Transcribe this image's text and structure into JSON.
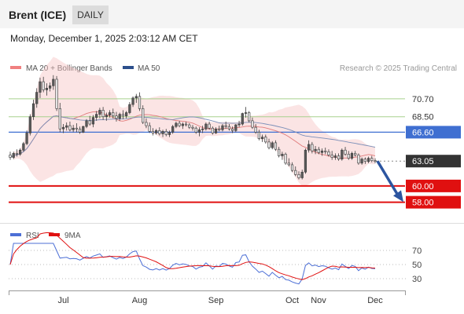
{
  "instrument": "Brent (ICE)",
  "timeframe": "DAILY",
  "timestamp": "Monday, December 1, 2025 2:03:12 AM CET",
  "credit": "Research © 2025 Trading Central",
  "colors": {
    "candle": "#3a3a3a",
    "bollinger_band": "#f7c4c4",
    "ma20": "#e07b7b",
    "ma50": "#7b8fb8",
    "pivot": "#3f6fd1",
    "support": "#e01010",
    "resistance": "#a8d08d",
    "last_price": "#333333",
    "rsi": "#4c6fd6",
    "rsi_ma": "#e01010",
    "arrow": "#2c55a0"
  },
  "chart_data": [
    {
      "type": "candlestick",
      "title": "Brent (ICE)",
      "legend": [
        {
          "label": "MA 20 + Bollinger Bands",
          "color": "#f08080"
        },
        {
          "label": "MA 50",
          "color": "#2c4f8c"
        }
      ],
      "legend_placement": "top-left",
      "xaxis_ticks": [
        "Jul",
        "Aug",
        "Sep",
        "Oct",
        "Nov",
        "Dec"
      ],
      "ylim": [
        57,
        73
      ],
      "ohlc": [
        [
          63.8,
          64.2,
          63.2,
          63.5
        ],
        [
          63.5,
          64.2,
          63.3,
          64.0
        ],
        [
          64.0,
          64.5,
          63.6,
          63.9
        ],
        [
          63.9,
          64.6,
          63.7,
          64.4
        ],
        [
          64.4,
          65.4,
          64.2,
          65.2
        ],
        [
          65.2,
          66.8,
          65.0,
          66.5
        ],
        [
          66.5,
          68.8,
          66.2,
          68.5
        ],
        [
          68.5,
          70.6,
          68.1,
          70.1
        ],
        [
          70.1,
          72.0,
          69.6,
          71.5
        ],
        [
          71.5,
          73.3,
          70.8,
          72.8
        ],
        [
          72.8,
          73.4,
          71.5,
          71.8
        ],
        [
          71.8,
          72.6,
          71.1,
          72.0
        ],
        [
          72.0,
          72.7,
          71.6,
          72.3
        ],
        [
          72.3,
          73.6,
          71.8,
          73.1
        ],
        [
          73.1,
          73.5,
          69.2,
          69.5
        ],
        [
          69.5,
          70.2,
          66.6,
          67.0
        ],
        [
          67.0,
          67.6,
          66.5,
          67.2
        ],
        [
          67.2,
          67.8,
          66.8,
          67.4
        ],
        [
          67.4,
          67.9,
          66.7,
          66.9
        ],
        [
          66.9,
          67.5,
          66.6,
          67.1
        ],
        [
          67.1,
          67.7,
          66.6,
          67.0
        ],
        [
          67.0,
          67.3,
          66.4,
          66.6
        ],
        [
          66.6,
          67.4,
          66.5,
          67.3
        ],
        [
          67.3,
          68.2,
          67.1,
          68.0
        ],
        [
          68.0,
          68.6,
          67.4,
          67.6
        ],
        [
          67.6,
          68.7,
          67.2,
          68.4
        ],
        [
          68.4,
          69.2,
          68.0,
          68.8
        ],
        [
          68.8,
          69.6,
          68.3,
          69.3
        ],
        [
          69.3,
          69.7,
          68.1,
          68.5
        ],
        [
          68.5,
          69.0,
          68.0,
          68.7
        ],
        [
          68.7,
          69.3,
          68.4,
          69.0
        ],
        [
          69.0,
          69.5,
          68.3,
          68.6
        ],
        [
          68.6,
          69.1,
          67.9,
          68.3
        ],
        [
          68.3,
          69.0,
          68.0,
          68.8
        ],
        [
          68.8,
          69.3,
          68.2,
          68.6
        ],
        [
          68.6,
          69.2,
          68.3,
          69.0
        ],
        [
          69.0,
          70.3,
          68.8,
          70.0
        ],
        [
          70.0,
          71.0,
          69.7,
          70.8
        ],
        [
          70.8,
          71.3,
          70.2,
          71.0
        ],
        [
          71.0,
          71.5,
          69.2,
          69.5
        ],
        [
          69.5,
          69.9,
          67.6,
          67.8
        ],
        [
          67.8,
          68.3,
          67.1,
          67.4
        ],
        [
          67.4,
          67.8,
          66.5,
          66.7
        ],
        [
          66.7,
          67.1,
          66.2,
          66.5
        ],
        [
          66.5,
          67.0,
          66.3,
          66.8
        ],
        [
          66.8,
          67.2,
          66.2,
          66.4
        ],
        [
          66.4,
          66.9,
          66.0,
          66.7
        ],
        [
          66.7,
          67.0,
          66.1,
          66.3
        ],
        [
          66.3,
          66.8,
          66.0,
          66.6
        ],
        [
          66.6,
          67.5,
          66.4,
          67.3
        ],
        [
          67.3,
          67.9,
          67.1,
          67.7
        ],
        [
          67.7,
          68.0,
          67.2,
          67.4
        ],
        [
          67.4,
          67.8,
          67.0,
          67.6
        ],
        [
          67.6,
          67.9,
          67.3,
          67.5
        ],
        [
          67.5,
          67.7,
          67.0,
          67.2
        ],
        [
          67.2,
          67.5,
          66.8,
          67.1
        ],
        [
          67.1,
          67.3,
          66.4,
          66.6
        ],
        [
          66.6,
          67.2,
          66.1,
          66.9
        ],
        [
          66.9,
          67.4,
          66.5,
          67.0
        ],
        [
          67.0,
          67.8,
          66.8,
          67.6
        ],
        [
          67.6,
          67.9,
          66.9,
          67.1
        ],
        [
          67.1,
          67.3,
          66.3,
          66.5
        ],
        [
          66.5,
          67.2,
          66.4,
          67.0
        ],
        [
          67.0,
          67.4,
          66.7,
          66.9
        ],
        [
          66.9,
          67.6,
          66.7,
          67.4
        ],
        [
          67.4,
          67.9,
          67.0,
          67.3
        ],
        [
          67.3,
          67.6,
          66.8,
          67.0
        ],
        [
          67.0,
          67.3,
          66.5,
          66.8
        ],
        [
          66.8,
          67.6,
          66.6,
          67.5
        ],
        [
          67.5,
          68.0,
          67.2,
          67.6
        ],
        [
          67.6,
          69.0,
          67.4,
          68.9
        ],
        [
          68.9,
          69.7,
          68.4,
          69.0
        ],
        [
          69.0,
          69.2,
          67.8,
          68.0
        ],
        [
          68.0,
          68.4,
          67.0,
          67.2
        ],
        [
          67.2,
          67.6,
          66.4,
          66.6
        ],
        [
          66.6,
          66.9,
          65.6,
          65.8
        ],
        [
          65.8,
          66.3,
          65.4,
          66.0
        ],
        [
          66.0,
          66.3,
          65.2,
          65.4
        ],
        [
          65.4,
          65.8,
          64.5,
          64.7
        ],
        [
          64.7,
          65.5,
          64.5,
          65.3
        ],
        [
          65.3,
          65.6,
          64.3,
          64.5
        ],
        [
          64.5,
          64.8,
          63.5,
          63.7
        ],
        [
          63.7,
          64.2,
          63.2,
          63.9
        ],
        [
          63.9,
          64.1,
          62.6,
          62.8
        ],
        [
          62.8,
          63.4,
          62.4,
          62.6
        ],
        [
          62.6,
          62.9,
          61.7,
          61.9
        ],
        [
          61.9,
          62.4,
          61.2,
          61.4
        ],
        [
          61.4,
          61.8,
          60.8,
          61.0
        ],
        [
          61.0,
          62.0,
          60.8,
          61.7
        ],
        [
          61.7,
          64.6,
          61.5,
          64.4
        ],
        [
          64.4,
          65.6,
          64.1,
          65.1
        ],
        [
          65.1,
          65.4,
          64.0,
          64.3
        ],
        [
          64.3,
          64.9,
          63.9,
          64.5
        ],
        [
          64.5,
          64.8,
          63.9,
          64.1
        ],
        [
          64.1,
          64.6,
          63.7,
          64.3
        ],
        [
          64.3,
          64.7,
          63.9,
          64.2
        ],
        [
          64.2,
          64.5,
          63.6,
          63.8
        ],
        [
          63.8,
          64.3,
          63.2,
          63.5
        ],
        [
          63.5,
          64.0,
          63.2,
          63.7
        ],
        [
          63.7,
          64.0,
          63.1,
          63.3
        ],
        [
          63.3,
          64.6,
          63.1,
          64.4
        ],
        [
          64.4,
          64.8,
          63.7,
          63.9
        ],
        [
          63.9,
          64.3,
          63.2,
          63.4
        ],
        [
          63.4,
          64.2,
          63.2,
          64.0
        ],
        [
          64.0,
          64.3,
          63.6,
          63.8
        ],
        [
          63.8,
          64.0,
          62.6,
          62.8
        ],
        [
          62.8,
          63.5,
          62.6,
          63.3
        ],
        [
          63.3,
          63.5,
          62.7,
          63.0
        ],
        [
          63.0,
          63.6,
          62.8,
          63.4
        ],
        [
          63.4,
          63.7,
          62.9,
          63.1
        ],
        [
          63.1,
          63.4,
          62.8,
          63.05
        ]
      ],
      "levels": [
        {
          "label": "70.70",
          "value": 70.7,
          "kind": "resistance"
        },
        {
          "label": "68.50",
          "value": 68.5,
          "kind": "resistance"
        },
        {
          "label": "66.60",
          "value": 66.6,
          "kind": "pivot"
        },
        {
          "label": "63.05",
          "value": 63.05,
          "kind": "last_price"
        },
        {
          "label": "60.00",
          "value": 60.0,
          "kind": "support"
        },
        {
          "label": "58.00",
          "value": 58.0,
          "kind": "support"
        }
      ]
    },
    {
      "type": "line",
      "title": "RSI",
      "legend": [
        {
          "label": "RSI",
          "color": "#4c6fd6"
        },
        {
          "label": "9MA",
          "color": "#e01010"
        }
      ],
      "legend_placement": "top-left",
      "ylim": [
        20,
        80
      ],
      "yaxis_ticks": [
        "70",
        "50",
        "30"
      ],
      "reference_lines": [
        70,
        50,
        30
      ]
    }
  ]
}
